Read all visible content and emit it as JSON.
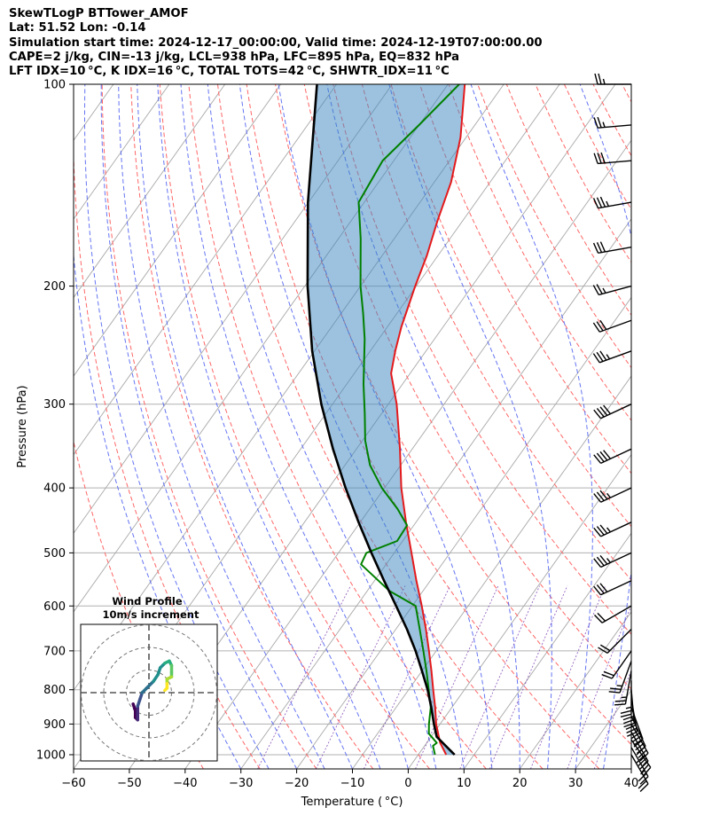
{
  "header": {
    "line1": "SkewTLogP BTTower_AMOF",
    "line2": "Lat: 51.52   Lon: -0.14",
    "line3": "Simulation start time: 2024-12-17_00:00:00, Valid time: 2024-12-19T07:00:00.00",
    "line4": "CAPE=2 j/kg, CIN=-13 j/kg, LCL=938 hPa, LFC=895 hPa, EQ=832 hPa",
    "line5": "LFT IDX=10 °C, K IDX=16 °C, TOTAL TOTS=42 °C, SHWTR_IDX=11 °C"
  },
  "chart_data": {
    "type": "line",
    "subtype": "skew-t log-p",
    "xlabel": "Temperature ( °C)",
    "ylabel": "Pressure (hPa)",
    "xlim": [
      -60,
      40
    ],
    "ylim": [
      1050,
      100
    ],
    "y_scale": "log",
    "grid": true,
    "x_ticks": [
      -60,
      -50,
      -40,
      -30,
      -20,
      -10,
      0,
      10,
      20,
      30,
      40
    ],
    "x_tick_labels": [
      "−60",
      "−50",
      "−40",
      "−30",
      "−20",
      "−10",
      "0",
      "10",
      "20",
      "30",
      "40"
    ],
    "y_ticks": [
      100,
      200,
      300,
      400,
      500,
      600,
      700,
      800,
      900,
      1000
    ],
    "y_tick_labels": [
      "100",
      "200",
      "300",
      "400",
      "500",
      "600",
      "700",
      "800",
      "900",
      "1000"
    ],
    "series": [
      {
        "role": "temperature",
        "color": "#e41a1c",
        "points": [
          [
            1000,
            5.0
          ],
          [
            960,
            2.4
          ],
          [
            900,
            -0.7
          ],
          [
            850,
            -3.0
          ],
          [
            800,
            -5.6
          ],
          [
            750,
            -8.3
          ],
          [
            700,
            -11.3
          ],
          [
            650,
            -14.6
          ],
          [
            600,
            -18.3
          ],
          [
            550,
            -22.5
          ],
          [
            500,
            -26.9
          ],
          [
            450,
            -31.8
          ],
          [
            400,
            -37.0
          ],
          [
            350,
            -42.2
          ],
          [
            300,
            -48.5
          ],
          [
            270,
            -53.4
          ],
          [
            250,
            -55.5
          ],
          [
            230,
            -57.5
          ],
          [
            200,
            -60.2
          ],
          [
            180,
            -62.0
          ],
          [
            160,
            -64.5
          ],
          [
            140,
            -67.0
          ],
          [
            120,
            -71.0
          ],
          [
            100,
            -77.0
          ]
        ]
      },
      {
        "role": "dewpoint",
        "color": "#008000",
        "points": [
          [
            1000,
            3.0
          ],
          [
            970,
            1.5
          ],
          [
            960,
            1.8
          ],
          [
            930,
            -0.8
          ],
          [
            900,
            -2.0
          ],
          [
            850,
            -3.8
          ],
          [
            800,
            -6.4
          ],
          [
            750,
            -9.2
          ],
          [
            700,
            -12.3
          ],
          [
            650,
            -15.7
          ],
          [
            600,
            -19.4
          ],
          [
            570,
            -26.0
          ],
          [
            540,
            -31.0
          ],
          [
            520,
            -34.5
          ],
          [
            500,
            -35.0
          ],
          [
            480,
            -31.0
          ],
          [
            455,
            -31.2
          ],
          [
            430,
            -35.0
          ],
          [
            400,
            -40.5
          ],
          [
            370,
            -45.5
          ],
          [
            340,
            -49.5
          ],
          [
            310,
            -53.0
          ],
          [
            280,
            -57.0
          ],
          [
            240,
            -62.5
          ],
          [
            220,
            -66.0
          ],
          [
            200,
            -70.0
          ],
          [
            170,
            -76.0
          ],
          [
            150,
            -81.0
          ],
          [
            130,
            -82.0
          ],
          [
            115,
            -80.0
          ],
          [
            100,
            -78.0
          ]
        ]
      },
      {
        "role": "parcel profile",
        "color": "#000000",
        "points": [
          [
            1000,
            6.5
          ],
          [
            940,
            1.0
          ],
          [
            900,
            -1.1
          ],
          [
            850,
            -3.7
          ],
          [
            800,
            -6.6
          ],
          [
            750,
            -10.0
          ],
          [
            700,
            -13.7
          ],
          [
            650,
            -18.0
          ],
          [
            600,
            -22.9
          ],
          [
            550,
            -28.3
          ],
          [
            500,
            -34.1
          ],
          [
            450,
            -40.3
          ],
          [
            400,
            -47.0
          ],
          [
            350,
            -54.2
          ],
          [
            300,
            -62.0
          ],
          [
            250,
            -70.4
          ],
          [
            200,
            -79.5
          ],
          [
            150,
            -90.1
          ],
          [
            100,
            -103.5
          ]
        ]
      }
    ],
    "wind_barbs": [
      {
        "p": 1000,
        "speed_kt": 20,
        "dir_deg": 150
      },
      {
        "p": 975,
        "speed_kt": 25,
        "dir_deg": 150
      },
      {
        "p": 950,
        "speed_kt": 25,
        "dir_deg": 145
      },
      {
        "p": 925,
        "speed_kt": 30,
        "dir_deg": 150
      },
      {
        "p": 900,
        "speed_kt": 30,
        "dir_deg": 150
      },
      {
        "p": 875,
        "speed_kt": 30,
        "dir_deg": 155
      },
      {
        "p": 850,
        "speed_kt": 30,
        "dir_deg": 160
      },
      {
        "p": 825,
        "speed_kt": 30,
        "dir_deg": 170
      },
      {
        "p": 800,
        "speed_kt": 30,
        "dir_deg": 175
      },
      {
        "p": 775,
        "speed_kt": 25,
        "dir_deg": 180
      },
      {
        "p": 750,
        "speed_kt": 25,
        "dir_deg": 190
      },
      {
        "p": 725,
        "speed_kt": 25,
        "dir_deg": 200
      },
      {
        "p": 700,
        "speed_kt": 20,
        "dir_deg": 215
      },
      {
        "p": 650,
        "speed_kt": 20,
        "dir_deg": 225
      },
      {
        "p": 600,
        "speed_kt": 20,
        "dir_deg": 240
      },
      {
        "p": 550,
        "speed_kt": 30,
        "dir_deg": 245
      },
      {
        "p": 500,
        "speed_kt": 35,
        "dir_deg": 245
      },
      {
        "p": 450,
        "speed_kt": 35,
        "dir_deg": 245
      },
      {
        "p": 400,
        "speed_kt": 35,
        "dir_deg": 245
      },
      {
        "p": 350,
        "speed_kt": 40,
        "dir_deg": 245
      },
      {
        "p": 300,
        "speed_kt": 40,
        "dir_deg": 245
      },
      {
        "p": 250,
        "speed_kt": 35,
        "dir_deg": 250
      },
      {
        "p": 225,
        "speed_kt": 30,
        "dir_deg": 250
      },
      {
        "p": 200,
        "speed_kt": 25,
        "dir_deg": 255
      },
      {
        "p": 175,
        "speed_kt": 30,
        "dir_deg": 260
      },
      {
        "p": 150,
        "speed_kt": 35,
        "dir_deg": 260
      },
      {
        "p": 130,
        "speed_kt": 30,
        "dir_deg": 265
      },
      {
        "p": 115,
        "speed_kt": 25,
        "dir_deg": 265
      },
      {
        "p": 100,
        "speed_kt": 25,
        "dir_deg": 270
      }
    ],
    "inset": {
      "title": "Wind Profile",
      "subtitle": "10m/s increment",
      "ring_increment_ms": 10,
      "hodograph_uv": [
        [
          -7,
          -5
        ],
        [
          -6,
          -8
        ],
        [
          -6,
          -11
        ],
        [
          -5,
          -12
        ],
        [
          -5,
          -10
        ],
        [
          -5,
          -6
        ],
        [
          -4,
          -3
        ],
        [
          -3,
          0
        ],
        [
          -1,
          2
        ],
        [
          2,
          5
        ],
        [
          4,
          8
        ],
        [
          5,
          11
        ],
        [
          7,
          13
        ],
        [
          9,
          14
        ],
        [
          10,
          12
        ],
        [
          10,
          9
        ],
        [
          10,
          7
        ],
        [
          8,
          6
        ],
        [
          8,
          4
        ],
        [
          8,
          2
        ],
        [
          7,
          1
        ]
      ]
    }
  }
}
